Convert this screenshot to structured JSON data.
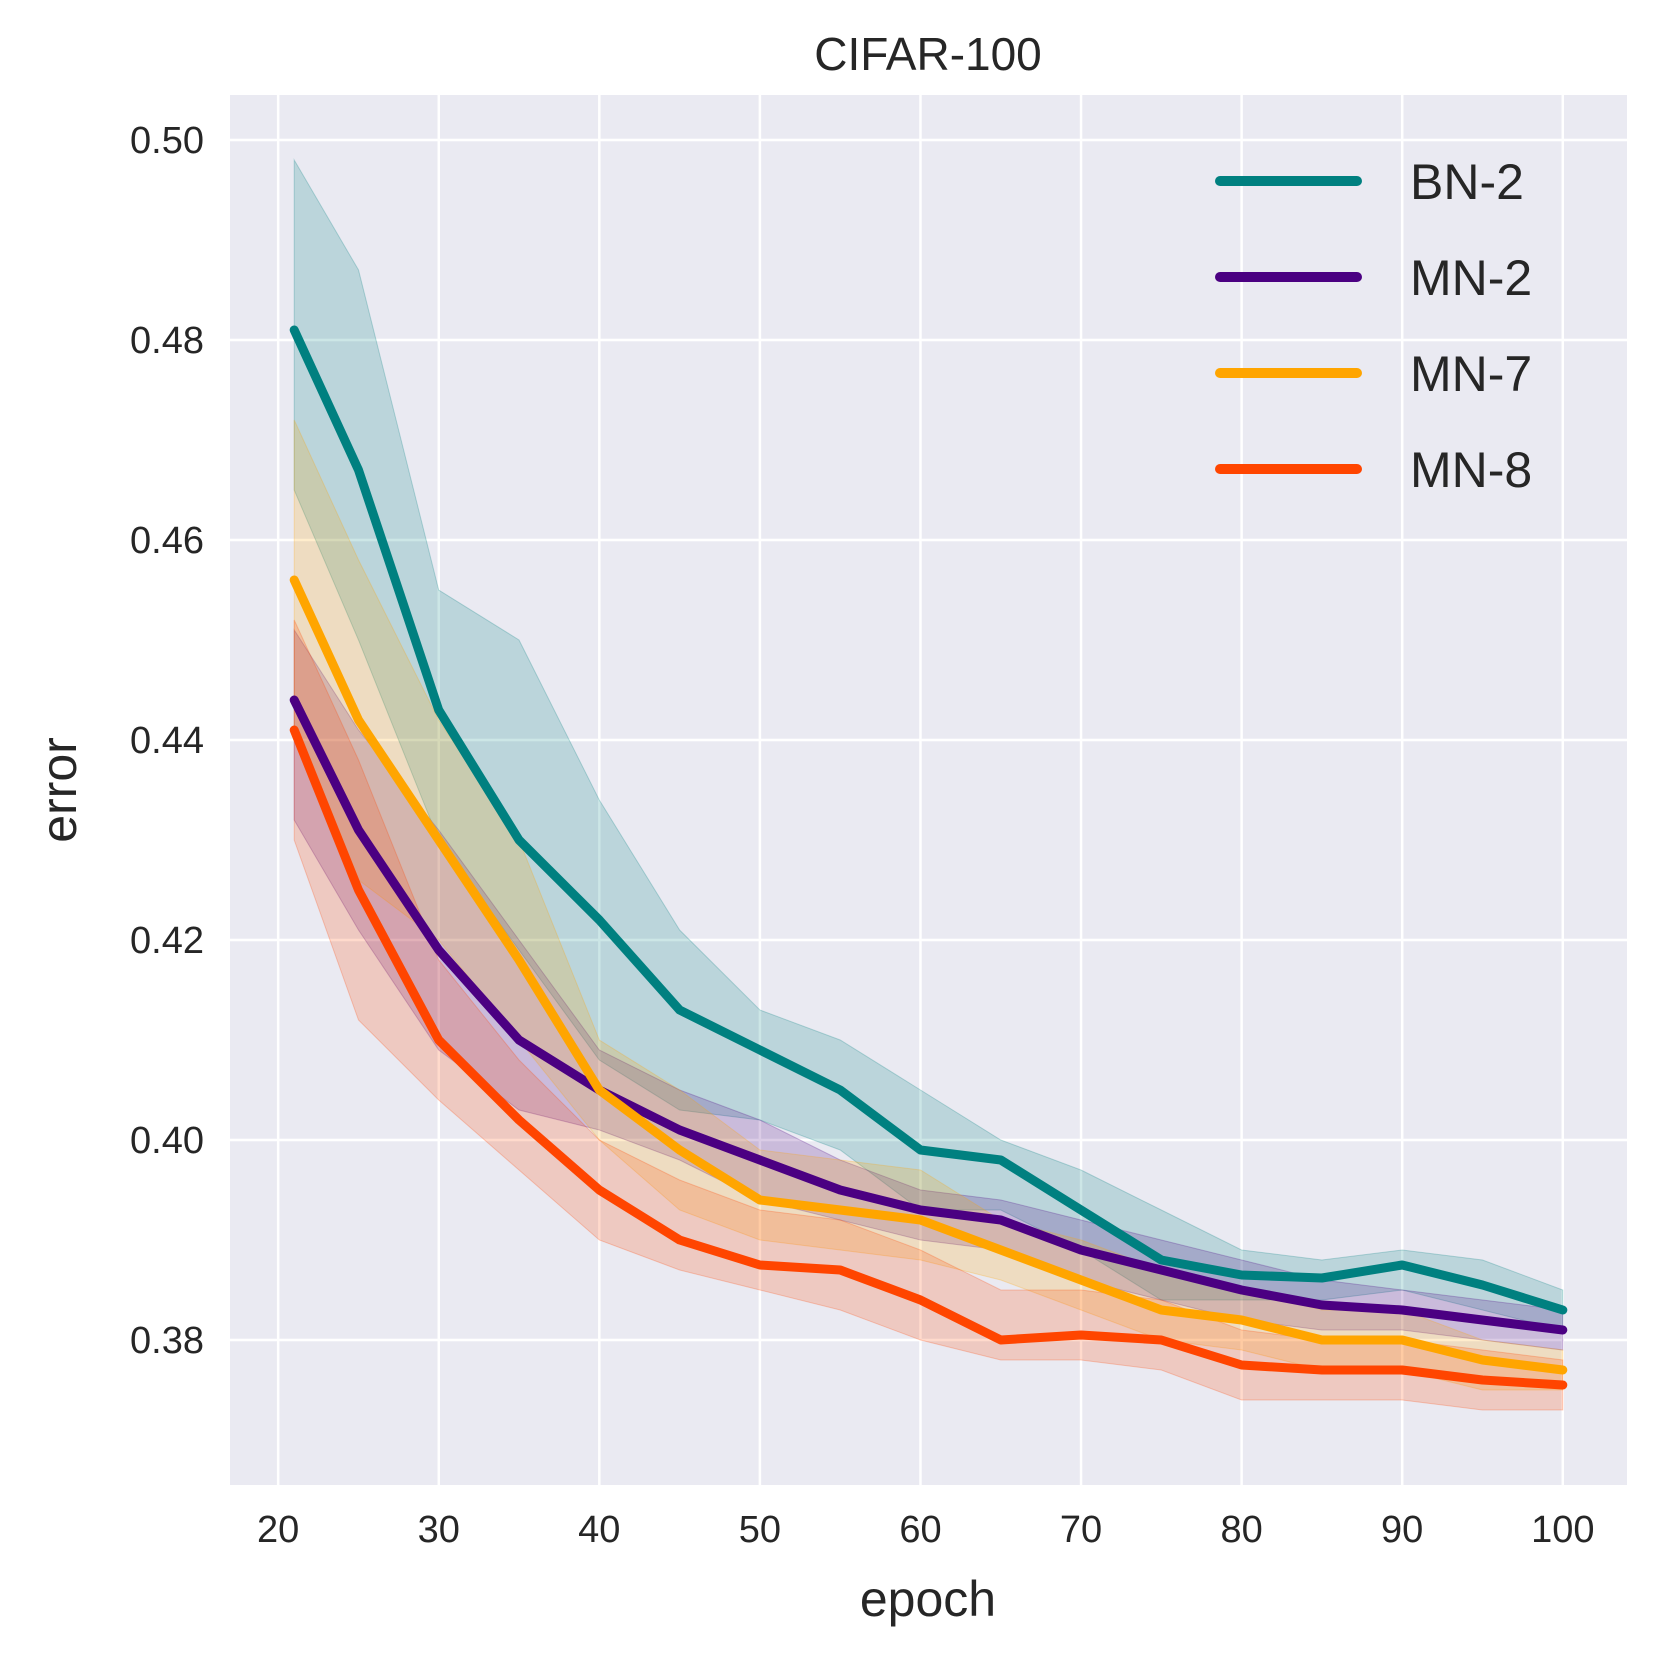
{
  "chart_data": {
    "type": "line",
    "title": "CIFAR-100",
    "xlabel": "epoch",
    "ylabel": "error",
    "xlim": [
      17,
      104
    ],
    "ylim": [
      0.3655,
      0.5045
    ],
    "xticks": [
      20,
      30,
      40,
      50,
      60,
      70,
      80,
      90,
      100
    ],
    "xtick_labels": [
      "20",
      "30",
      "40",
      "50",
      "60",
      "70",
      "80",
      "90",
      "100"
    ],
    "yticks": [
      0.38,
      0.4,
      0.42,
      0.44,
      0.46,
      0.48,
      0.5
    ],
    "ytick_labels": [
      "0.38",
      "0.40",
      "0.42",
      "0.44",
      "0.46",
      "0.48",
      "0.50"
    ],
    "grid": true,
    "legend_position": "top-right",
    "x": [
      21,
      25,
      30,
      35,
      40,
      45,
      50,
      55,
      60,
      65,
      70,
      75,
      80,
      85,
      90,
      95,
      100
    ],
    "series": [
      {
        "name": "BN-2",
        "color": "#008080",
        "values": [
          0.481,
          0.467,
          0.443,
          0.43,
          0.422,
          0.413,
          0.409,
          0.405,
          0.399,
          0.398,
          0.393,
          0.388,
          0.3865,
          0.3862,
          0.3875,
          0.3855,
          0.383
        ],
        "upper": [
          0.498,
          0.487,
          0.455,
          0.45,
          0.434,
          0.421,
          0.413,
          0.41,
          0.405,
          0.4,
          0.397,
          0.393,
          0.389,
          0.388,
          0.389,
          0.388,
          0.385
        ],
        "lower": [
          0.465,
          0.45,
          0.43,
          0.419,
          0.408,
          0.403,
          0.402,
          0.399,
          0.393,
          0.393,
          0.389,
          0.384,
          0.384,
          0.384,
          0.385,
          0.383,
          0.381
        ]
      },
      {
        "name": "MN-2",
        "color": "#4b0082",
        "values": [
          0.444,
          0.431,
          0.419,
          0.41,
          0.405,
          0.401,
          0.398,
          0.395,
          0.393,
          0.392,
          0.389,
          0.387,
          0.385,
          0.3835,
          0.383,
          0.382,
          0.381
        ],
        "upper": [
          0.451,
          0.441,
          0.431,
          0.42,
          0.409,
          0.405,
          0.402,
          0.398,
          0.395,
          0.394,
          0.392,
          0.39,
          0.388,
          0.386,
          0.385,
          0.384,
          0.383
        ],
        "lower": [
          0.432,
          0.421,
          0.409,
          0.403,
          0.401,
          0.398,
          0.394,
          0.392,
          0.39,
          0.389,
          0.386,
          0.384,
          0.382,
          0.381,
          0.381,
          0.38,
          0.379
        ]
      },
      {
        "name": "MN-7",
        "color": "#ffa500",
        "values": [
          0.456,
          0.442,
          0.43,
          0.418,
          0.405,
          0.399,
          0.394,
          0.393,
          0.392,
          0.389,
          0.386,
          0.383,
          0.382,
          0.38,
          0.38,
          0.378,
          0.377
        ],
        "upper": [
          0.472,
          0.458,
          0.442,
          0.43,
          0.41,
          0.405,
          0.399,
          0.398,
          0.397,
          0.392,
          0.39,
          0.387,
          0.385,
          0.383,
          0.383,
          0.38,
          0.379
        ],
        "lower": [
          0.44,
          0.426,
          0.42,
          0.41,
          0.4,
          0.393,
          0.39,
          0.389,
          0.388,
          0.386,
          0.383,
          0.38,
          0.379,
          0.377,
          0.377,
          0.375,
          0.375
        ]
      },
      {
        "name": "MN-8",
        "color": "#ff4500",
        "values": [
          0.441,
          0.425,
          0.41,
          0.402,
          0.395,
          0.39,
          0.3875,
          0.387,
          0.384,
          0.38,
          0.3805,
          0.38,
          0.3775,
          0.377,
          0.377,
          0.376,
          0.3755
        ],
        "upper": [
          0.452,
          0.438,
          0.418,
          0.408,
          0.4,
          0.396,
          0.393,
          0.392,
          0.389,
          0.385,
          0.385,
          0.384,
          0.381,
          0.38,
          0.38,
          0.379,
          0.378
        ],
        "lower": [
          0.43,
          0.412,
          0.404,
          0.397,
          0.39,
          0.387,
          0.385,
          0.383,
          0.38,
          0.378,
          0.378,
          0.377,
          0.374,
          0.374,
          0.374,
          0.373,
          0.373
        ]
      }
    ]
  }
}
